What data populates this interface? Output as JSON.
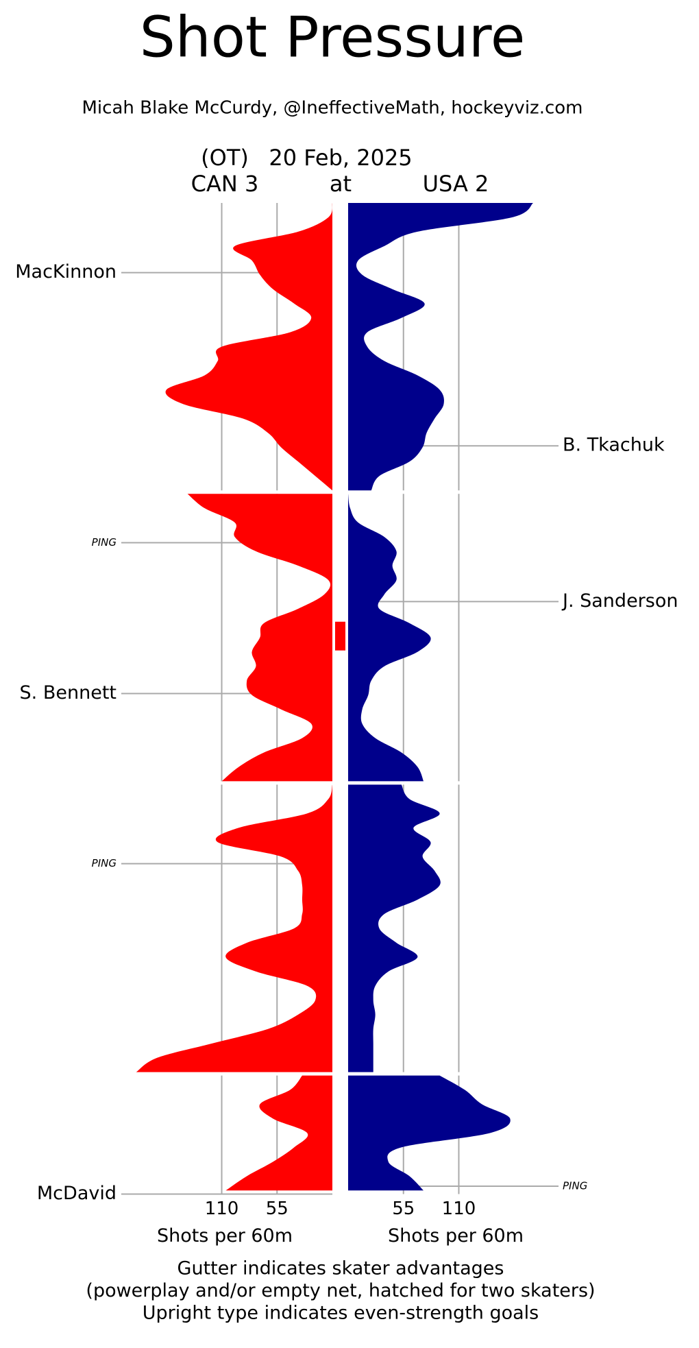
{
  "title": "Shot Pressure",
  "subtitle": "Micah Blake McCurdy, @IneffectiveMath, hockeyviz.com",
  "game": {
    "overtime": "(OT)",
    "date": "20 Feb, 2025",
    "away": "CAN 3",
    "at": "at",
    "home": "USA 2"
  },
  "value_axis": {
    "lim": [
      0,
      200
    ],
    "ticks": [
      55,
      110
    ],
    "label": "Shots per 60m",
    "grid_color": "#aaaaaa"
  },
  "footer": [
    "Gutter indicates skater advantages",
    "(powerplay and/or empty net, hatched for two skaters)",
    "Upright type indicates even-strength goals"
  ],
  "chart_data": [
    {
      "type": "area",
      "xlim": [
        0,
        20
      ],
      "x": [
        0,
        1,
        2,
        3,
        4,
        5,
        6,
        7,
        8,
        9,
        10,
        11,
        12,
        13,
        14,
        15,
        16,
        17,
        18,
        19,
        20
      ],
      "series": [
        {
          "color": "#ff0000",
          "values": [
            0,
            4,
            34,
            97,
            80,
            72,
            59,
            38,
            21,
            42,
            110,
            114,
            127,
            165,
            148,
            89,
            64,
            51,
            34,
            17,
            0
          ]
        },
        {
          "color": "#00008b",
          "values": [
            184,
            163,
            69,
            36,
            10,
            14,
            44,
            76,
            53,
            19,
            19,
            36,
            69,
            91,
            95,
            86,
            78,
            74,
            61,
            31,
            23
          ]
        }
      ],
      "goals": [
        {
          "label": "MacKinnon",
          "side": "left",
          "x": 4.85,
          "even_strength": true
        },
        {
          "label": "B. Tkachuk",
          "side": "right",
          "x": 16.9,
          "even_strength": true
        }
      ]
    },
    {
      "type": "area",
      "xlim": [
        0,
        20
      ],
      "x": [
        0,
        1,
        2,
        3,
        4,
        5,
        6,
        7,
        8,
        9,
        10,
        11,
        12,
        13,
        14,
        15,
        16,
        17,
        18,
        19,
        20
      ],
      "series": [
        {
          "color": "#ff0000",
          "values": [
            144,
            127,
            97,
            97,
            76,
            34,
            4,
            8,
            34,
            68,
            72,
            80,
            76,
            85,
            80,
            51,
            21,
            30,
            68,
            93,
            110
          ]
        },
        {
          "color": "#00008b",
          "values": [
            0,
            2,
            10,
            36,
            48,
            44,
            48,
            36,
            31,
            61,
            82,
            69,
            36,
            23,
            20,
            14,
            14,
            27,
            53,
            69,
            75
          ]
        }
      ],
      "goals": [
        {
          "label": "PING",
          "side": "left",
          "x": 3.4,
          "even_strength": false
        },
        {
          "label": "J. Sanderson",
          "side": "right",
          "x": 7.5,
          "even_strength": true
        },
        {
          "label": "S. Bennett",
          "side": "left",
          "x": 13.9,
          "even_strength": true
        }
      ],
      "gutter": [
        {
          "side": "left",
          "color": "#ff0000",
          "start": 8.9,
          "end": 10.9
        }
      ]
    },
    {
      "type": "area",
      "xlim": [
        0,
        20
      ],
      "x": [
        0,
        1,
        2,
        3,
        4,
        5,
        6,
        7,
        8,
        9,
        10,
        11,
        12,
        13,
        14,
        15,
        16,
        17,
        18,
        19,
        20
      ],
      "series": [
        {
          "color": "#ff0000",
          "values": [
            0,
            4,
            25,
            93,
            114,
            51,
            34,
            30,
            30,
            30,
            38,
            85,
            106,
            76,
            25,
            17,
            34,
            64,
            119,
            174,
            195
          ]
        },
        {
          "color": "#00008b",
          "values": [
            53,
            61,
            91,
            65,
            82,
            74,
            86,
            91,
            69,
            36,
            31,
            48,
            69,
            40,
            27,
            25,
            27,
            25,
            25,
            25,
            25
          ]
        }
      ],
      "goals": [
        {
          "label": "PING",
          "side": "left",
          "x": 5.5,
          "even_strength": false
        }
      ]
    },
    {
      "type": "area",
      "xlim": [
        0,
        8.25
      ],
      "x": [
        0,
        1,
        2,
        3,
        4,
        5,
        6,
        7,
        8
      ],
      "series": [
        {
          "color": "#ff0000",
          "values": [
            30,
            42,
            72,
            59,
            25,
            38,
            59,
            85,
            106
          ]
        },
        {
          "color": "#00008b",
          "values": [
            91,
            116,
            133,
            161,
            141,
            53,
            40,
            61,
            75
          ]
        }
      ],
      "goals": [
        {
          "label": "PING",
          "side": "right",
          "x": 7.7,
          "even_strength": false
        },
        {
          "label": "McDavid",
          "side": "left",
          "x": 8.25,
          "even_strength": true
        }
      ]
    }
  ]
}
